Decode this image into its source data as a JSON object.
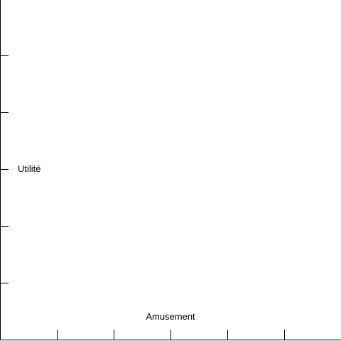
{
  "axes": {
    "y_label": "Utilité",
    "x_label": "Amusement",
    "axis_color": "#000000",
    "background_color": "#ffffff",
    "x_tick_count": 5,
    "y_tick_count": 5,
    "tick_labels_shown": false
  }
}
